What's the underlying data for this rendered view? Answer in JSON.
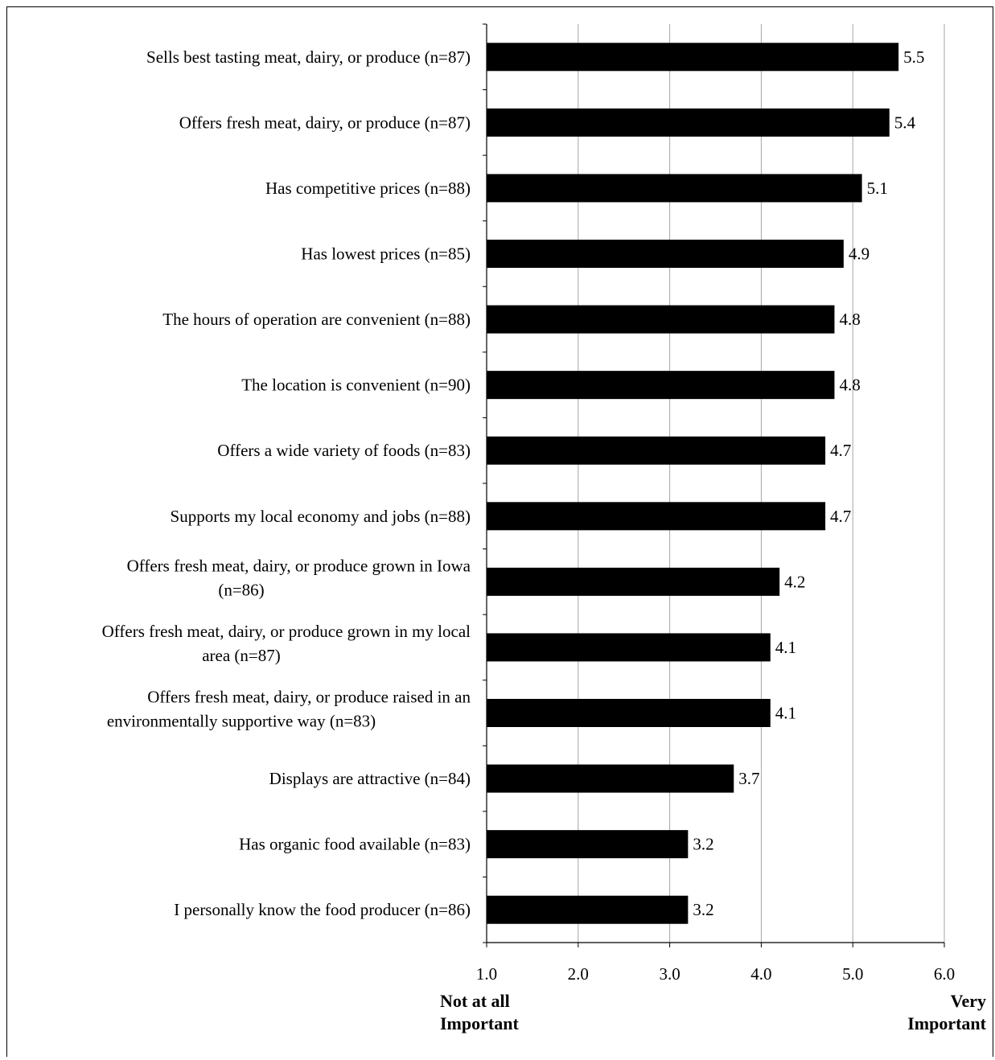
{
  "chart_data": {
    "type": "bar",
    "orientation": "horizontal",
    "categories": [
      [
        "Sells best tasting meat, dairy, or produce (n=87)"
      ],
      [
        "Offers fresh meat, dairy, or produce (n=87)"
      ],
      [
        "Has competitive prices (n=88)"
      ],
      [
        "Has lowest prices (n=85)"
      ],
      [
        "The hours of operation are convenient (n=88)"
      ],
      [
        "The location is convenient (n=90)"
      ],
      [
        "Offers a wide variety of foods (n=83)"
      ],
      [
        "Supports my local economy and jobs (n=88)"
      ],
      [
        "Offers fresh meat, dairy, or produce grown in Iowa",
        "(n=86)"
      ],
      [
        "Offers fresh meat, dairy, or produce grown in my local",
        "area (n=87)"
      ],
      [
        "Offers fresh meat, dairy, or produce raised in an",
        "environmentally supportive way (n=83)"
      ],
      [
        "Displays are attractive (n=84)"
      ],
      [
        "Has organic food available (n=83)"
      ],
      [
        "I personally know the food producer (n=86)"
      ]
    ],
    "values": [
      5.5,
      5.4,
      5.1,
      4.9,
      4.8,
      4.8,
      4.7,
      4.7,
      4.2,
      4.1,
      4.1,
      3.7,
      3.2,
      3.2
    ],
    "value_labels": [
      "5.5",
      "5.4",
      "5.1",
      "4.9",
      "4.8",
      "4.8",
      "4.7",
      "4.7",
      "4.2",
      "4.1",
      "4.1",
      "3.7",
      "3.2",
      "3.2"
    ],
    "xlim": [
      1.0,
      6.0
    ],
    "x_ticks": [
      "1.0",
      "2.0",
      "3.0",
      "4.0",
      "5.0",
      "6.0"
    ],
    "x_tick_values": [
      1,
      2,
      3,
      4,
      5,
      6
    ],
    "x_end_labels": {
      "low": [
        "Not at all",
        "Important"
      ],
      "high": [
        "Very",
        "Important"
      ]
    },
    "grid": "vertical",
    "bar_color": "#000000",
    "grid_color": "#a6a6a6"
  }
}
